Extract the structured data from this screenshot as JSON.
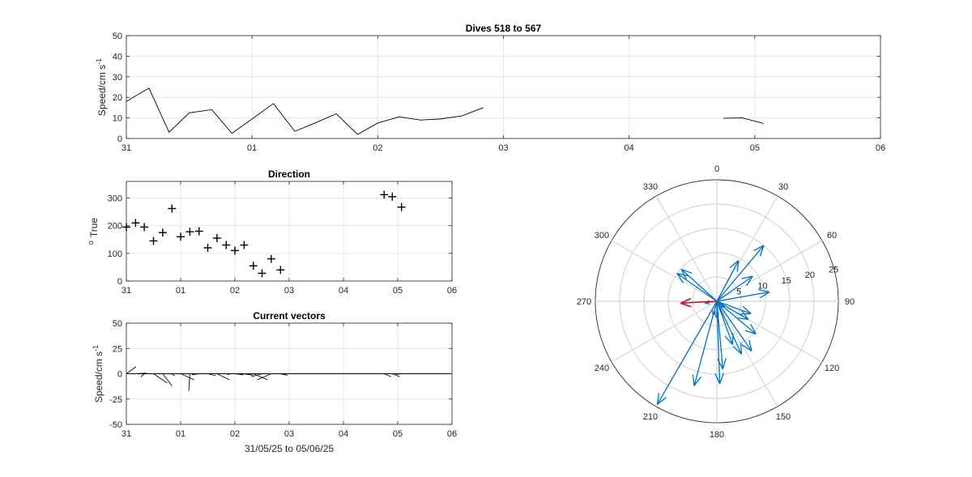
{
  "chart_data": [
    {
      "id": "speed",
      "type": "line",
      "title": "Dives 518 to 567",
      "ylabel_main": "Speed/cm s",
      "ylabel_sup": "-1",
      "xlabel": "",
      "xlim": [
        0,
        6
      ],
      "ylim": [
        0,
        50
      ],
      "xticks": [
        0,
        1,
        2,
        3,
        4,
        5,
        6
      ],
      "xticklabels": [
        "31",
        "01",
        "02",
        "03",
        "04",
        "05",
        "06"
      ],
      "yticks": [
        0,
        10,
        20,
        30,
        40,
        50
      ],
      "grid": true,
      "line_color": "#000000",
      "segments": [
        [
          [
            0,
            18
          ],
          [
            0.18,
            24.5
          ],
          [
            0.34,
            3
          ],
          [
            0.5,
            12.5
          ],
          [
            0.68,
            14
          ],
          [
            0.84,
            2.5
          ],
          [
            1.0,
            9.5
          ],
          [
            1.17,
            17
          ],
          [
            1.34,
            3.5
          ],
          [
            1.5,
            7.5
          ],
          [
            1.67,
            12
          ],
          [
            1.84,
            2
          ],
          [
            2.0,
            7.5
          ],
          [
            2.17,
            10.5
          ],
          [
            2.34,
            9
          ],
          [
            2.5,
            9.5
          ],
          [
            2.67,
            11
          ],
          [
            2.84,
            15
          ]
        ],
        [
          [
            4.75,
            9.8
          ],
          [
            4.9,
            10
          ],
          [
            5.07,
            7.3
          ]
        ]
      ]
    },
    {
      "id": "direction",
      "type": "scatter",
      "title": "Direction",
      "ylabel_main": "True",
      "ylabel_sup": "o",
      "xlabel": "",
      "xlim": [
        0,
        6
      ],
      "ylim": [
        0,
        360
      ],
      "xticks": [
        0,
        1,
        2,
        3,
        4,
        5,
        6
      ],
      "xticklabels": [
        "31",
        "01",
        "02",
        "03",
        "04",
        "05",
        "06"
      ],
      "yticks": [
        0,
        100,
        200,
        300
      ],
      "grid": true,
      "marker": "+",
      "marker_color": "#000000",
      "x": [
        0.0,
        0.17,
        0.33,
        0.5,
        0.67,
        0.84,
        1.0,
        1.17,
        1.34,
        1.5,
        1.67,
        1.84,
        2.0,
        2.17,
        2.34,
        2.5,
        2.67,
        2.84,
        4.75,
        4.9,
        5.07
      ],
      "y": [
        195,
        210,
        195,
        145,
        175,
        262,
        160,
        178,
        180,
        120,
        155,
        130,
        110,
        130,
        55,
        28,
        80,
        40,
        312,
        305,
        267
      ]
    },
    {
      "id": "vectors",
      "type": "line",
      "title": "Current vectors",
      "ylabel_main": "Speed/cm s",
      "ylabel_sup": "-1",
      "xlabel": "31/05/25 to 05/06/25",
      "xlim": [
        0,
        6
      ],
      "ylim": [
        -50,
        50
      ],
      "xticks": [
        0,
        1,
        2,
        3,
        4,
        5,
        6
      ],
      "xticklabels": [
        "31",
        "01",
        "02",
        "03",
        "04",
        "05",
        "06"
      ],
      "yticks": [
        -50,
        -25,
        0,
        25,
        50
      ],
      "grid": true,
      "zero_line": true,
      "line_color": "#000000",
      "vectors": [
        {
          "x": 0.0,
          "u": 0.18,
          "v": 7
        },
        {
          "x": 0.17,
          "u": 0.2,
          "v": 0.6
        },
        {
          "x": 0.33,
          "u": -0.06,
          "v": -3
        },
        {
          "x": 0.5,
          "u": 0.25,
          "v": -9
        },
        {
          "x": 0.67,
          "u": 0.17,
          "v": -12
        },
        {
          "x": 0.84,
          "u": 0.05,
          "v": -2
        },
        {
          "x": 1.0,
          "u": 0.25,
          "v": -6
        },
        {
          "x": 1.17,
          "u": -0.02,
          "v": -17
        },
        {
          "x": 1.34,
          "u": -0.13,
          "v": -1
        },
        {
          "x": 1.5,
          "u": 0.15,
          "v": -2
        },
        {
          "x": 1.67,
          "u": 0.23,
          "v": -6
        },
        {
          "x": 1.84,
          "u": 0.06,
          "v": -0.7
        },
        {
          "x": 2.0,
          "u": 0.16,
          "v": -1
        },
        {
          "x": 2.17,
          "u": 0.17,
          "v": -1.5
        },
        {
          "x": 2.34,
          "u": 0.26,
          "v": -6
        },
        {
          "x": 2.5,
          "u": -0.2,
          "v": -3
        },
        {
          "x": 2.67,
          "u": -0.26,
          "v": -6
        },
        {
          "x": 2.84,
          "u": 0.13,
          "v": -1.5
        },
        {
          "x": 4.75,
          "u": 0.13,
          "v": -3
        },
        {
          "x": 4.9,
          "u": 0.14,
          "v": -3
        },
        {
          "x": 5.07,
          "u": -0.1,
          "v": -0.5
        }
      ]
    },
    {
      "id": "compass",
      "type": "scatter",
      "subtype": "polar-compass",
      "title": "",
      "rmax": 25,
      "rings": [
        5,
        10,
        15,
        20,
        25
      ],
      "ring_labels": [
        "5",
        "10",
        "15",
        "20",
        "25"
      ],
      "angle_labels": [
        "0",
        "30",
        "60",
        "90",
        "120",
        "150",
        "180",
        "210",
        "240",
        "270",
        "300",
        "330"
      ],
      "arrow_color": "#0072BD",
      "mean_color": "#D62020",
      "arrows": [
        {
          "bearing": 195,
          "speed": 18
        },
        {
          "bearing": 210,
          "speed": 24.5
        },
        {
          "bearing": 195,
          "speed": 3
        },
        {
          "bearing": 145,
          "speed": 12.5
        },
        {
          "bearing": 175,
          "speed": 14
        },
        {
          "bearing": 262,
          "speed": 2.5
        },
        {
          "bearing": 160,
          "speed": 9.5
        },
        {
          "bearing": 178,
          "speed": 17
        },
        {
          "bearing": 180,
          "speed": 3.5
        },
        {
          "bearing": 120,
          "speed": 7.5
        },
        {
          "bearing": 155,
          "speed": 12
        },
        {
          "bearing": 130,
          "speed": 2
        },
        {
          "bearing": 110,
          "speed": 7.5
        },
        {
          "bearing": 130,
          "speed": 10.5
        },
        {
          "bearing": 55,
          "speed": 9
        },
        {
          "bearing": 28,
          "speed": 9.5
        },
        {
          "bearing": 80,
          "speed": 11
        },
        {
          "bearing": 40,
          "speed": 15
        },
        {
          "bearing": 312,
          "speed": 9.8
        },
        {
          "bearing": 305,
          "speed": 10
        },
        {
          "bearing": 267,
          "speed": 7.3
        }
      ],
      "mean_arrow": {
        "bearing": 267,
        "speed": 7.5
      }
    }
  ]
}
